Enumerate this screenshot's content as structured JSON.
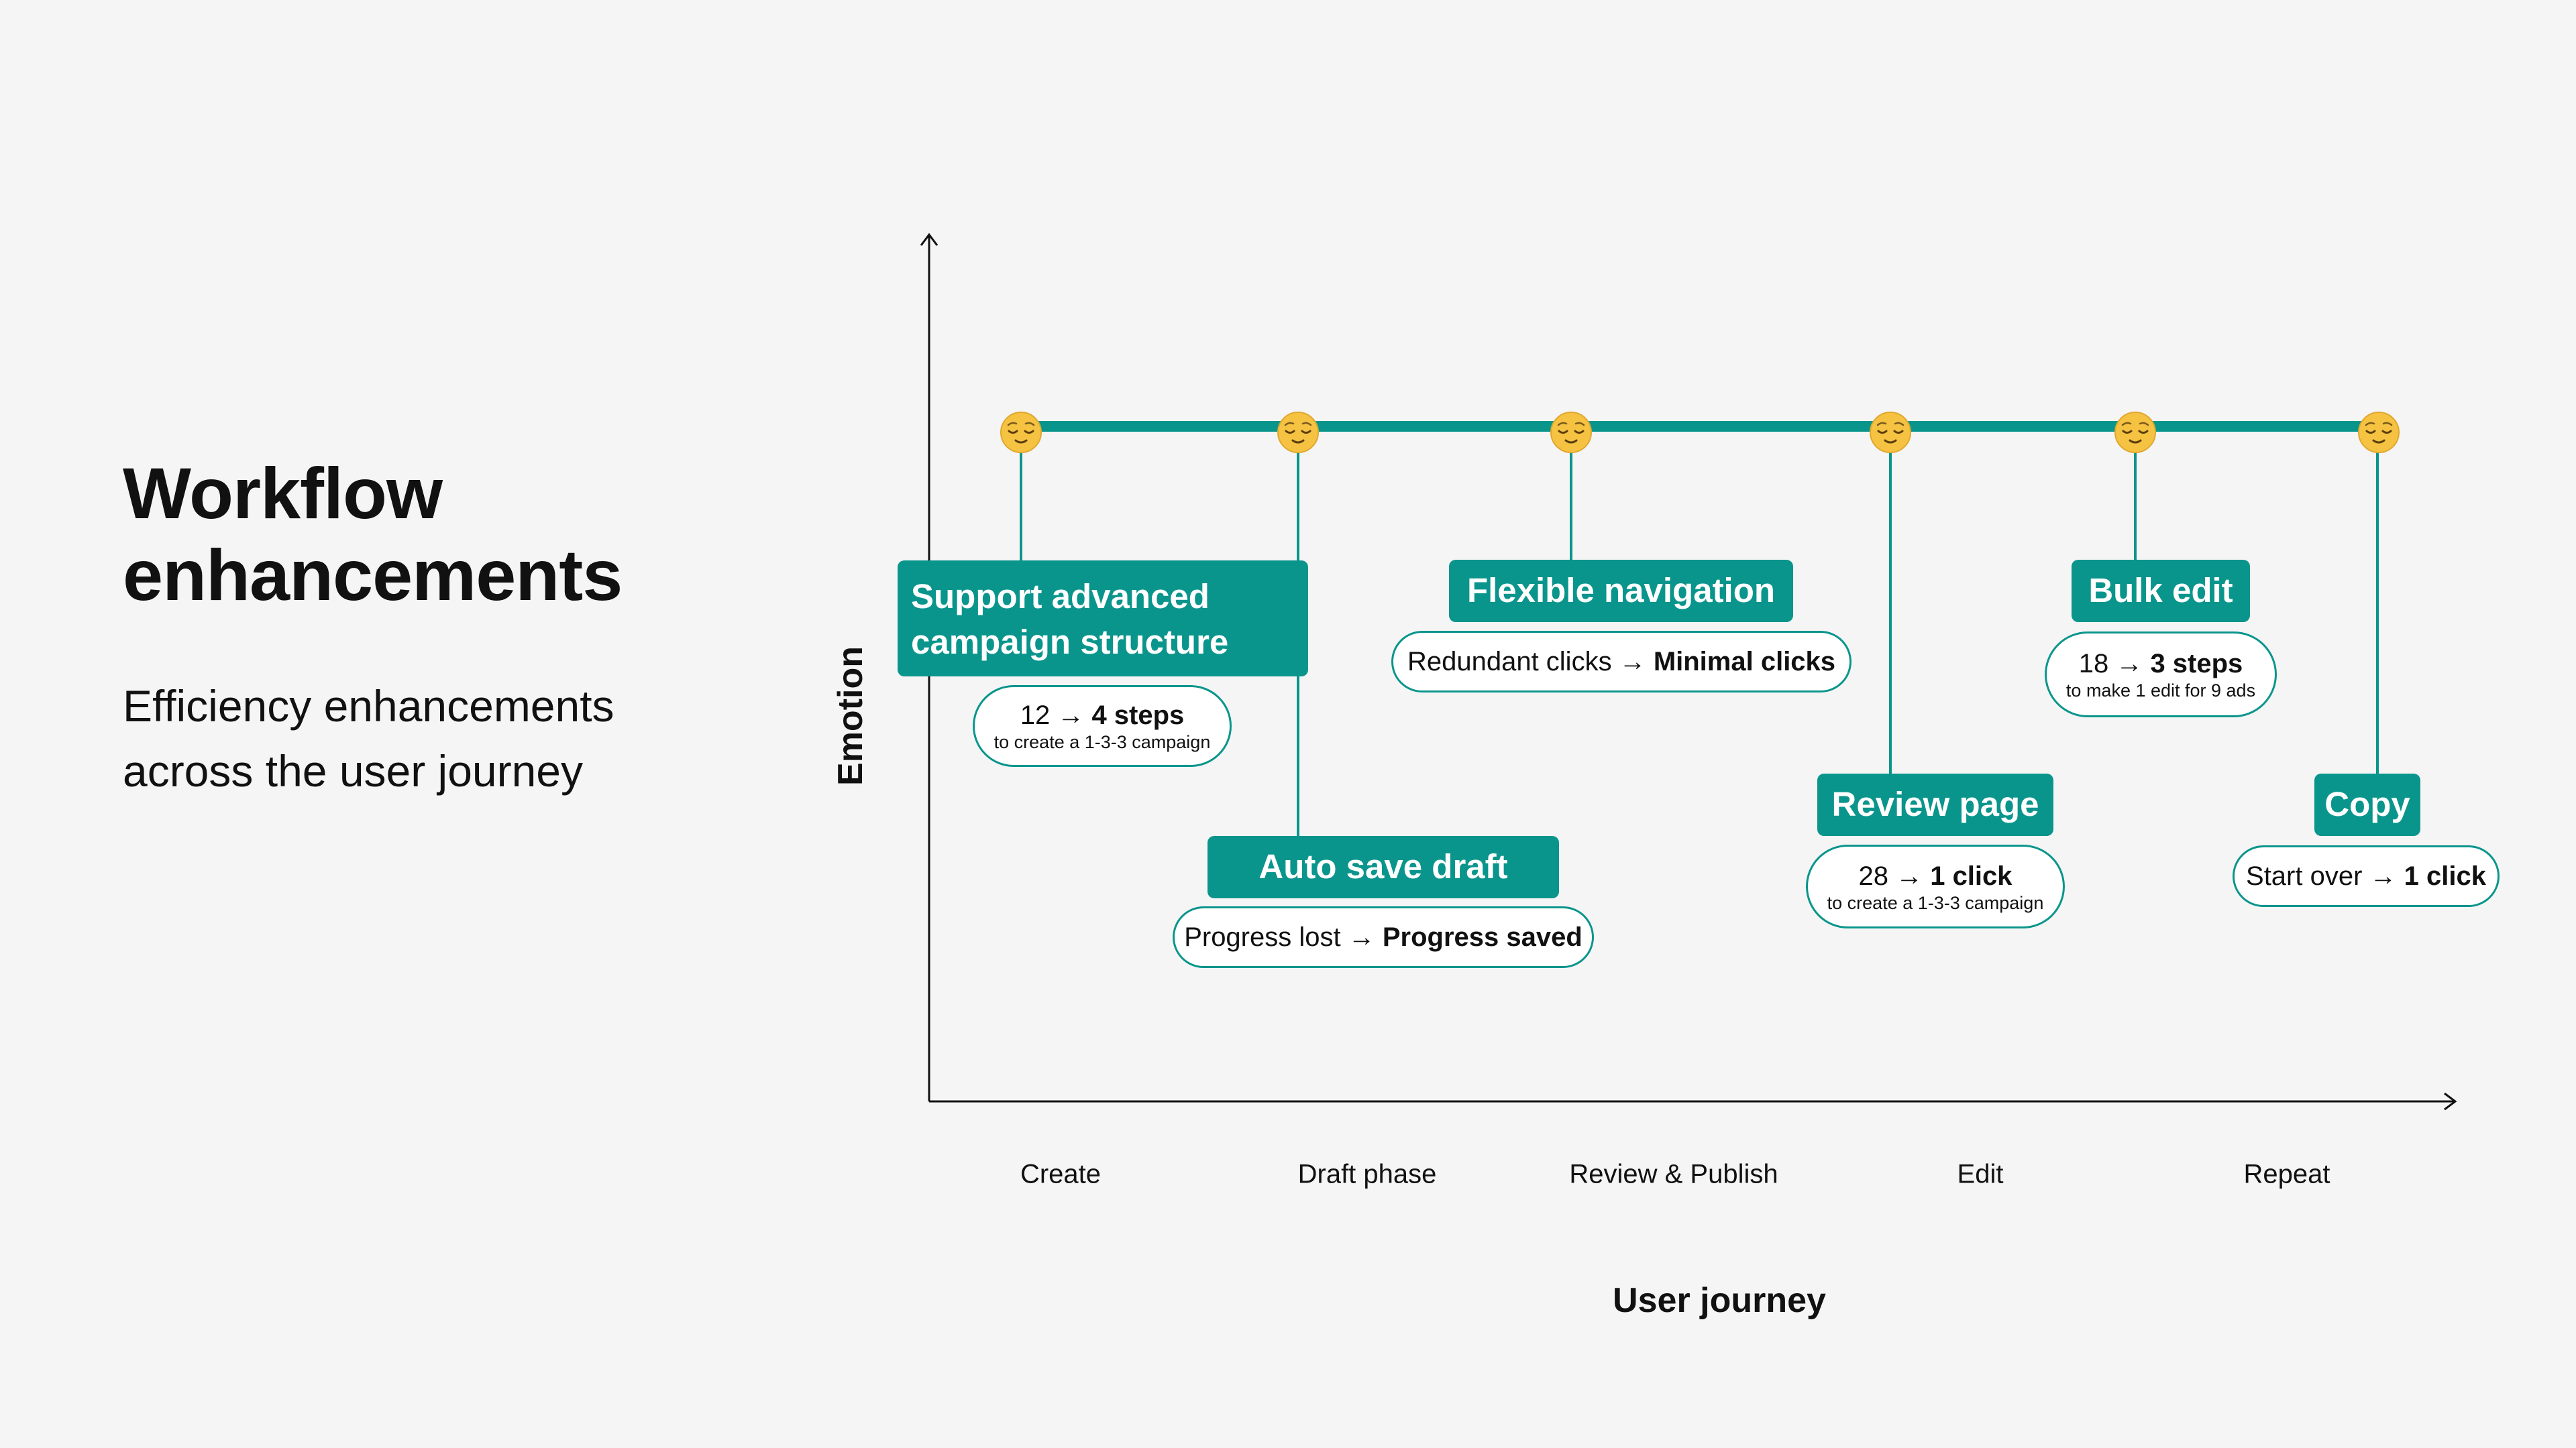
{
  "title": "Workflow enhancements",
  "subtitle_lines": [
    "Efficiency enhancements",
    "across the user journey"
  ],
  "colors": {
    "background": "#f5f5f5",
    "accent": "#0a958c",
    "text": "#111111",
    "emoji": "#f5c242"
  },
  "axes": {
    "y_label": "Emotion",
    "x_label": "User journey",
    "stages": [
      "Create",
      "Draft phase",
      "Review & Publish",
      "Edit",
      "Repeat"
    ]
  },
  "emotion_icon": "relieved-face-icon",
  "enhancements": [
    {
      "title": "Support advanced campaign structure",
      "title_lines": [
        "Support advanced",
        "campaign structure"
      ],
      "metric_before": "12 →",
      "metric_after": "4 steps",
      "metric_note": "to create a 1-3-3 campaign"
    },
    {
      "title": "Auto save draft",
      "metric_before": "Progress lost →",
      "metric_after": "Progress saved",
      "metric_note": ""
    },
    {
      "title": "Flexible navigation",
      "metric_before": "Redundant clicks →",
      "metric_after": "Minimal clicks",
      "metric_note": ""
    },
    {
      "title": "Review page",
      "metric_before": "28 →",
      "metric_after": "1 click",
      "metric_note": "to create a 1-3-3 campaign"
    },
    {
      "title": "Bulk edit",
      "metric_before": "18 →",
      "metric_after": "3 steps",
      "metric_note": "to make 1 edit for 9 ads"
    },
    {
      "title": "Copy",
      "metric_before": "Start over →",
      "metric_after": "1 click",
      "metric_note": ""
    }
  ]
}
